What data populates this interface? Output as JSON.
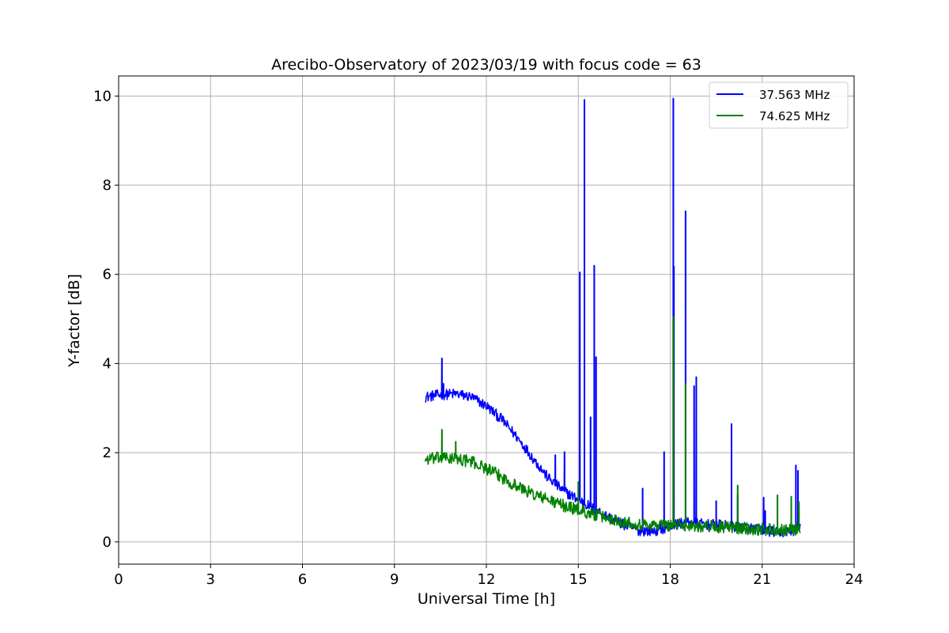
{
  "chart_data": {
    "type": "line",
    "title": "Arecibo-Observatory of 2023/03/19 with focus code = 63",
    "xlabel": "Universal Time [h]",
    "ylabel": "Y-factor [dB]",
    "xlim": [
      0,
      24
    ],
    "ylim": [
      -0.5,
      10.45
    ],
    "xticks": [
      0,
      3,
      6,
      9,
      12,
      15,
      18,
      21,
      24
    ],
    "yticks": [
      0,
      2,
      4,
      6,
      8,
      10
    ],
    "xtick_labels": [
      "0",
      "3",
      "6",
      "9",
      "12",
      "15",
      "18",
      "21",
      "24"
    ],
    "ytick_labels": [
      "0",
      "2",
      "4",
      "6",
      "8",
      "10"
    ],
    "grid": true,
    "legend_position": "top-right",
    "x_range_of_data": [
      10.0,
      22.25
    ],
    "series": [
      {
        "name": "37.563 MHz",
        "color": "#0000ff",
        "trend": [
          [
            10.0,
            3.25
          ],
          [
            10.5,
            3.3
          ],
          [
            11.0,
            3.32
          ],
          [
            11.5,
            3.25
          ],
          [
            12.0,
            3.05
          ],
          [
            12.5,
            2.75
          ],
          [
            13.0,
            2.35
          ],
          [
            13.5,
            1.9
          ],
          [
            14.0,
            1.45
          ],
          [
            14.5,
            1.15
          ],
          [
            15.0,
            0.95
          ],
          [
            15.5,
            0.75
          ],
          [
            16.0,
            0.55
          ],
          [
            16.5,
            0.38
          ],
          [
            17.0,
            0.25
          ],
          [
            17.5,
            0.25
          ],
          [
            18.0,
            0.35
          ],
          [
            18.5,
            0.45
          ],
          [
            19.0,
            0.4
          ],
          [
            19.5,
            0.38
          ],
          [
            20.0,
            0.35
          ],
          [
            20.5,
            0.32
          ],
          [
            21.0,
            0.28
          ],
          [
            21.5,
            0.2
          ],
          [
            22.0,
            0.25
          ],
          [
            22.25,
            0.3
          ]
        ],
        "noise": 0.12,
        "spikes": [
          [
            10.55,
            4.12
          ],
          [
            10.6,
            3.55
          ],
          [
            14.25,
            1.95
          ],
          [
            14.55,
            2.02
          ],
          [
            15.05,
            6.05
          ],
          [
            15.2,
            9.92
          ],
          [
            15.4,
            2.8
          ],
          [
            15.52,
            6.2
          ],
          [
            15.58,
            4.15
          ],
          [
            17.1,
            1.2
          ],
          [
            17.8,
            2.02
          ],
          [
            18.1,
            9.95
          ],
          [
            18.12,
            6.18
          ],
          [
            18.5,
            7.42
          ],
          [
            18.78,
            3.5
          ],
          [
            18.85,
            3.7
          ],
          [
            19.5,
            0.92
          ],
          [
            20.0,
            2.65
          ],
          [
            20.2,
            1.05
          ],
          [
            21.1,
            0.7
          ],
          [
            21.05,
            1.0
          ],
          [
            22.1,
            1.72
          ],
          [
            22.17,
            1.6
          ]
        ]
      },
      {
        "name": "74.625 MHz",
        "color": "#008000",
        "trend": [
          [
            10.0,
            1.85
          ],
          [
            10.5,
            1.88
          ],
          [
            11.0,
            1.87
          ],
          [
            11.5,
            1.8
          ],
          [
            12.0,
            1.65
          ],
          [
            12.5,
            1.45
          ],
          [
            13.0,
            1.25
          ],
          [
            13.5,
            1.08
          ],
          [
            14.0,
            0.95
          ],
          [
            14.5,
            0.82
          ],
          [
            15.0,
            0.72
          ],
          [
            15.5,
            0.62
          ],
          [
            16.0,
            0.52
          ],
          [
            16.5,
            0.45
          ],
          [
            17.0,
            0.4
          ],
          [
            17.5,
            0.38
          ],
          [
            18.0,
            0.38
          ],
          [
            18.5,
            0.38
          ],
          [
            19.0,
            0.36
          ],
          [
            19.5,
            0.34
          ],
          [
            20.0,
            0.32
          ],
          [
            20.5,
            0.3
          ],
          [
            21.0,
            0.28
          ],
          [
            21.5,
            0.28
          ],
          [
            22.0,
            0.28
          ],
          [
            22.25,
            0.3
          ]
        ],
        "noise": 0.14,
        "spikes": [
          [
            10.55,
            2.52
          ],
          [
            11.0,
            2.25
          ],
          [
            15.0,
            1.35
          ],
          [
            18.1,
            5.05
          ],
          [
            18.5,
            3.55
          ],
          [
            20.2,
            1.27
          ],
          [
            21.5,
            1.05
          ],
          [
            21.95,
            1.02
          ],
          [
            22.2,
            0.9
          ]
        ]
      }
    ]
  }
}
